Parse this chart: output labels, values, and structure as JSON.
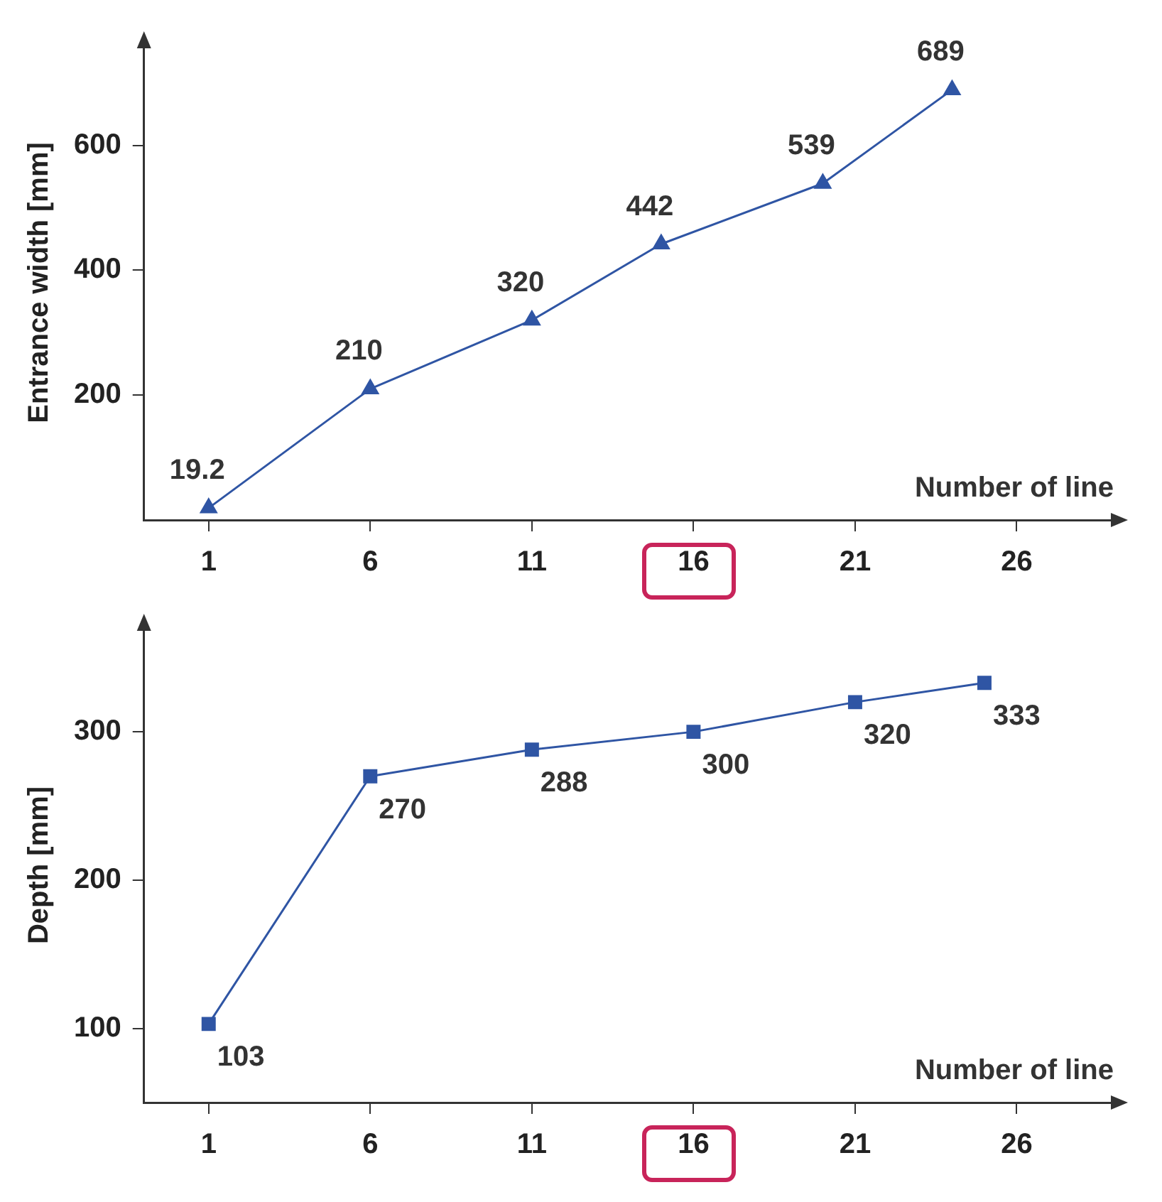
{
  "chart_data": [
    {
      "type": "line",
      "ylabel": "Entrance width [mm]",
      "xlabel": "Number of line",
      "x": [
        1,
        6,
        11,
        15,
        20,
        24
      ],
      "series": [
        {
          "color": "#2f55a4",
          "values": [
            19.2,
            210,
            320,
            442,
            539,
            689
          ]
        }
      ],
      "xlim": [
        -1,
        29
      ],
      "xticks": [
        1,
        6,
        11,
        16,
        21,
        26
      ],
      "ylim": [
        0,
        760
      ],
      "yticks": [
        200,
        400,
        600
      ],
      "marker": "triangle",
      "data_labels": true
    },
    {
      "type": "line",
      "ylabel": "Depth [mm]",
      "xlabel": "Number of line",
      "x": [
        1,
        6,
        11,
        16,
        21,
        25
      ],
      "series": [
        {
          "color": "#2f55a4",
          "values": [
            103,
            270,
            288,
            300,
            320,
            333
          ]
        }
      ],
      "xlim": [
        -1,
        29
      ],
      "xticks": [
        1,
        6,
        11,
        16,
        21,
        26
      ],
      "ylim": [
        50,
        370
      ],
      "yticks": [
        100,
        200,
        300
      ],
      "marker": "square",
      "data_labels": true
    }
  ]
}
